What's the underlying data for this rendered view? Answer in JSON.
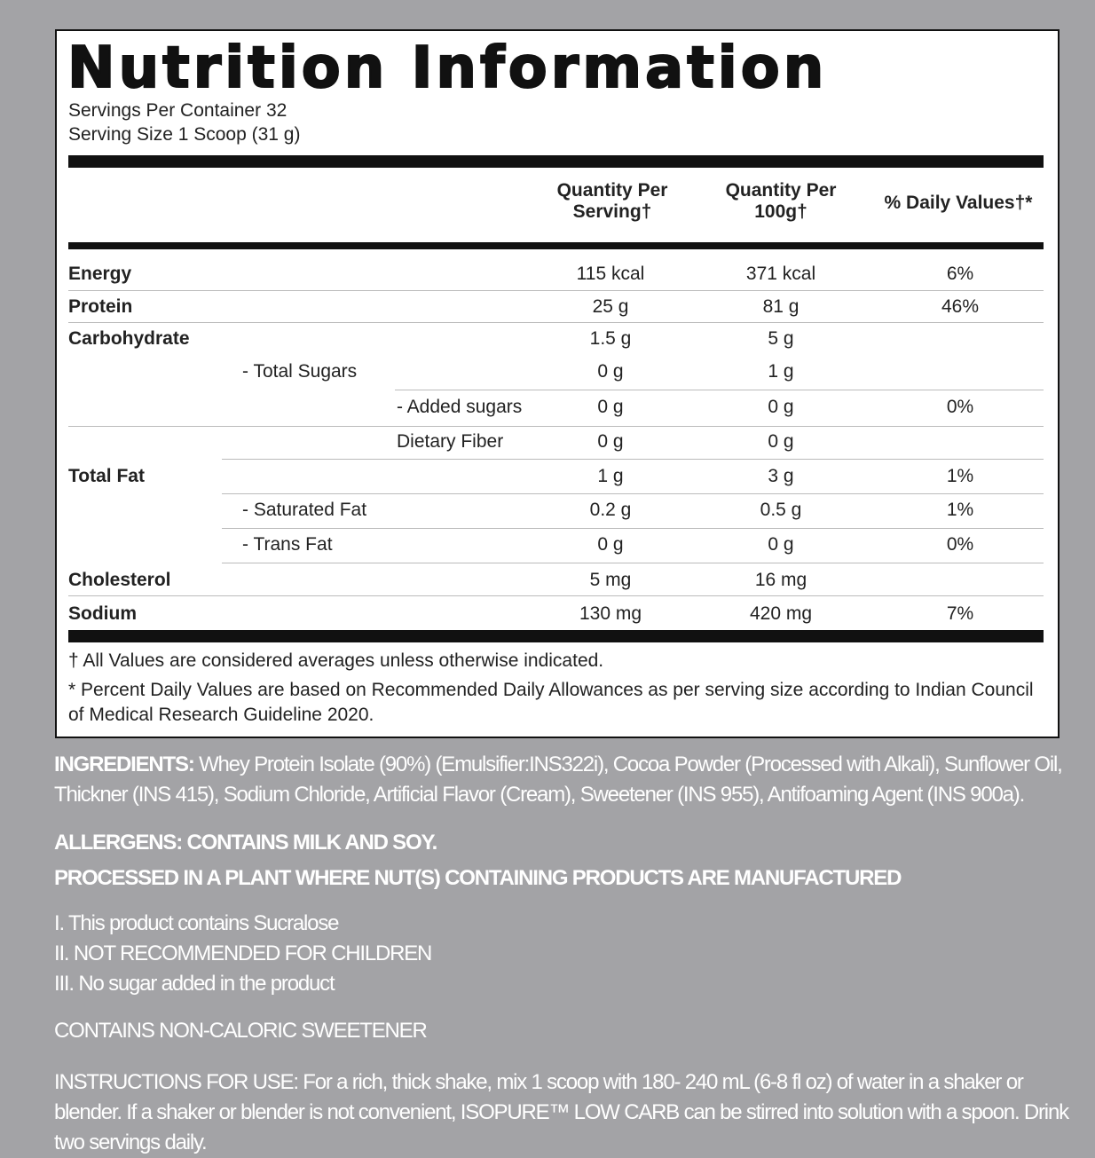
{
  "title": "Nutrition Information",
  "servings": [
    "Servings Per Container 32",
    "Serving Size 1 Scoop (31 g)"
  ],
  "table": {
    "headers": [
      "Quantity Per Serving†",
      "Quantity Per 100g†",
      "% Daily Values†*"
    ],
    "rows": [
      [
        "Energy",
        null,
        null,
        "115 kcal",
        "371 kcal",
        "6%"
      ],
      [
        "Protein",
        null,
        null,
        "25 g",
        "81 g",
        "46%"
      ],
      [
        "Carbohydrate",
        null,
        null,
        "1.5 g",
        "5 g",
        null
      ],
      [
        null,
        "- Total Sugars",
        null,
        "0 g",
        "1 g",
        null
      ],
      [
        null,
        null,
        "- Added sugars",
        "0 g",
        "0 g",
        "0%"
      ],
      [
        null,
        null,
        "Dietary Fiber",
        "0 g",
        "0 g",
        null
      ],
      [
        "Total Fat",
        null,
        null,
        "1 g",
        "3 g",
        "1%"
      ],
      [
        null,
        "- Saturated Fat",
        null,
        "0.2 g",
        "0.5 g",
        "1%"
      ],
      [
        null,
        "- Trans Fat",
        null,
        "0 g",
        "0 g",
        "0%"
      ],
      [
        "Cholesterol",
        null,
        null,
        "5 mg",
        "16 mg",
        null
      ],
      [
        "Sodium",
        null,
        null,
        "130 mg",
        "420 mg",
        "7%"
      ]
    ]
  },
  "footnotes": [
    "† All Values are considered averages unless otherwise indicated.",
    "* Percent Daily Values are based on Recommended Daily Allowances as per serving size according to Indian Council of Medical Research Guideline 2020."
  ],
  "ingredients": {
    "label": "INGREDIENTS:",
    "text": "Whey Protein Isolate (90%) (Emulsifier:INS322i), Cocoa Powder (Processed with Alkali), Sunflower Oil, Thickner (INS 415), Sodium Chloride, Artificial Flavor (Cream), Sweetener (INS 955), Antifoaming Agent (INS 900a)."
  },
  "allergens": [
    "ALLERGENS: CONTAINS MILK AND SOY.",
    "PROCESSED IN A PLANT WHERE NUT(S) CONTAINING PRODUCTS ARE MANUFACTURED"
  ],
  "notes": [
    "I. This product contains Sucralose",
    "II. NOT RECOMMENDED FOR CHILDREN",
    "III. No sugar added in the product"
  ],
  "sweetener": "CONTAINS NON-CALORIC SWEETENER",
  "instructions": "INSTRUCTIONS FOR USE: For a rich, thick shake, mix 1 scoop with 180- 240 mL (6-8 fl oz) of water in a shaker or blender. If a shaker or blender is not convenient, ISOPURE™ LOW CARB can be stirred into solution with a spoon. Drink two servings daily."
}
